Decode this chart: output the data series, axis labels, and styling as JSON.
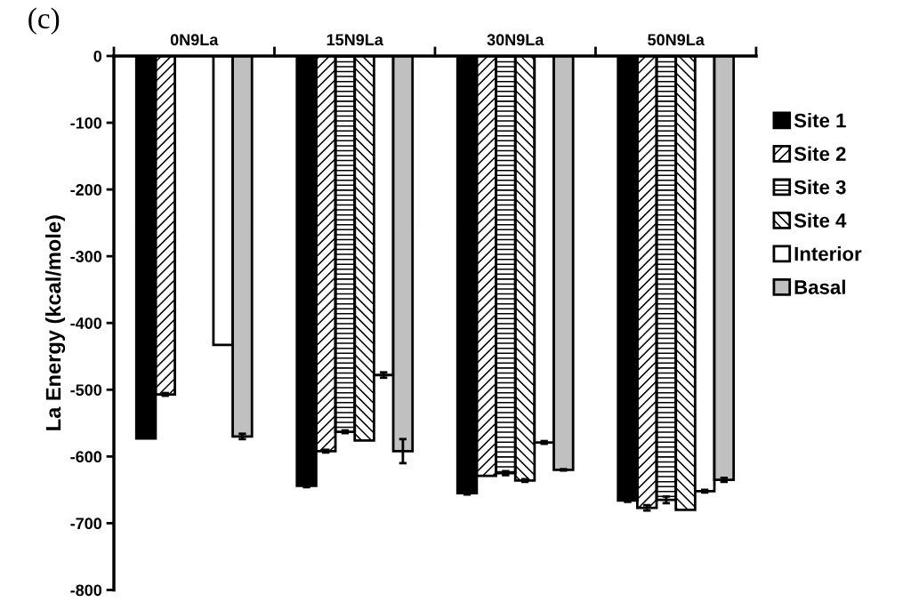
{
  "chart_data": {
    "type": "bar",
    "title": "(c)",
    "ylabel": "La Energy (kcal/mole)",
    "categories": [
      "0N9La",
      "15N9La",
      "30N9La",
      "50N9La"
    ],
    "series": [
      {
        "name": "Site 1",
        "color": "#000000",
        "values": [
          -573,
          -644,
          -655,
          -666
        ],
        "errors": [
          null,
          2,
          2,
          2
        ]
      },
      {
        "name": "Site 2",
        "color": "#000000",
        "values": [
          -507,
          -592,
          -629,
          -677
        ],
        "errors": [
          2,
          2,
          null,
          4
        ]
      },
      {
        "name": "Site 3",
        "color": "#000000",
        "values": [
          null,
          -563,
          -625,
          -665
        ],
        "errors": [
          null,
          2,
          3,
          5
        ]
      },
      {
        "name": "Site 4",
        "color": "#000000",
        "values": [
          null,
          -576,
          -636,
          -680
        ],
        "errors": [
          null,
          null,
          2,
          null
        ]
      },
      {
        "name": "Interior",
        "color": "#ffffff",
        "values": [
          -433,
          -478,
          -579,
          -652
        ],
        "errors": [
          null,
          4,
          2,
          2
        ]
      },
      {
        "name": "Basal",
        "color": "#c0c0c0",
        "values": [
          -570,
          -592,
          -620,
          -635
        ],
        "errors": [
          4,
          18,
          1,
          3
        ]
      }
    ],
    "ylim": [
      -800,
      0
    ],
    "yticks": [
      -800,
      -700,
      -600,
      -500,
      -400,
      -300,
      -200,
      -100,
      0
    ],
    "legend": "right",
    "grid": false
  }
}
